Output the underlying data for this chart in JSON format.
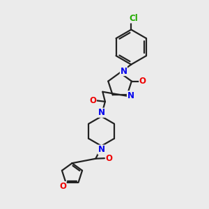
{
  "bg_color": "#ebebeb",
  "bond_color": "#222222",
  "N_color": "#0000ee",
  "O_color": "#ee0000",
  "Cl_color": "#22aa00",
  "bond_width": 1.6,
  "figsize": [
    3.0,
    3.0
  ],
  "dpi": 100,
  "xlim": [
    0,
    10
  ],
  "ylim": [
    0,
    10
  ]
}
